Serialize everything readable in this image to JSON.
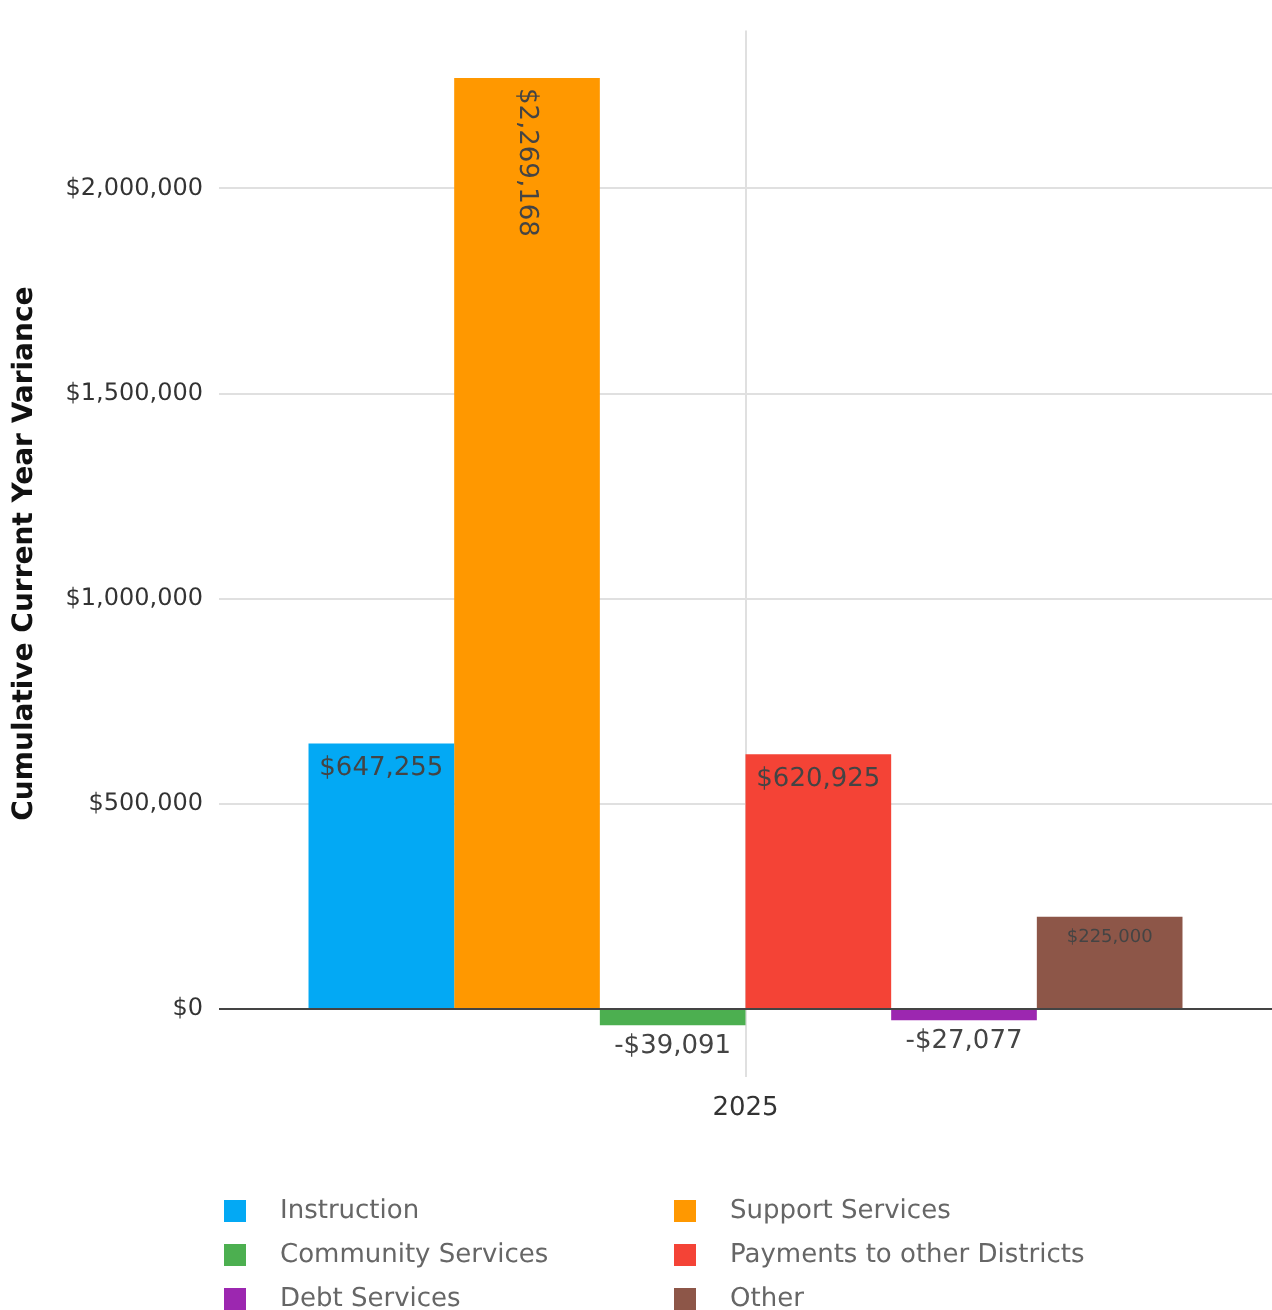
{
  "chart_data": {
    "type": "bar",
    "ylabel": "Cumulative Current Year Variance",
    "categories": [
      "2025"
    ],
    "series": [
      {
        "name": "Instruction",
        "color": "#03a9f4",
        "values": [
          647255
        ],
        "value_labels": [
          "$647,255"
        ]
      },
      {
        "name": "Support Services",
        "color": "#ff9800",
        "values": [
          2269168
        ],
        "value_labels": [
          "$2,269,168"
        ]
      },
      {
        "name": "Community Services",
        "color": "#4caf50",
        "values": [
          -39091
        ],
        "value_labels": [
          "-$39,091"
        ]
      },
      {
        "name": "Payments to other Districts",
        "color": "#f44336",
        "values": [
          620925
        ],
        "value_labels": [
          "$620,925"
        ]
      },
      {
        "name": "Debt Services",
        "color": "#9c27b0",
        "values": [
          -27077
        ],
        "value_labels": [
          "-$27,077"
        ]
      },
      {
        "name": "Other",
        "color": "#8d5648",
        "values": [
          225000
        ],
        "value_labels": [
          "$225,000"
        ]
      }
    ],
    "ylim": [
      -165000,
      2385000
    ],
    "yticks": [
      {
        "value": 0,
        "label": "$0"
      },
      {
        "value": 500000,
        "label": "$500,000"
      },
      {
        "value": 1000000,
        "label": "$1,000,000"
      },
      {
        "value": 1500000,
        "label": "$1,500,000"
      },
      {
        "value": 2000000,
        "label": "$2,000,000"
      }
    ],
    "grid": true,
    "legend": "bottom"
  }
}
